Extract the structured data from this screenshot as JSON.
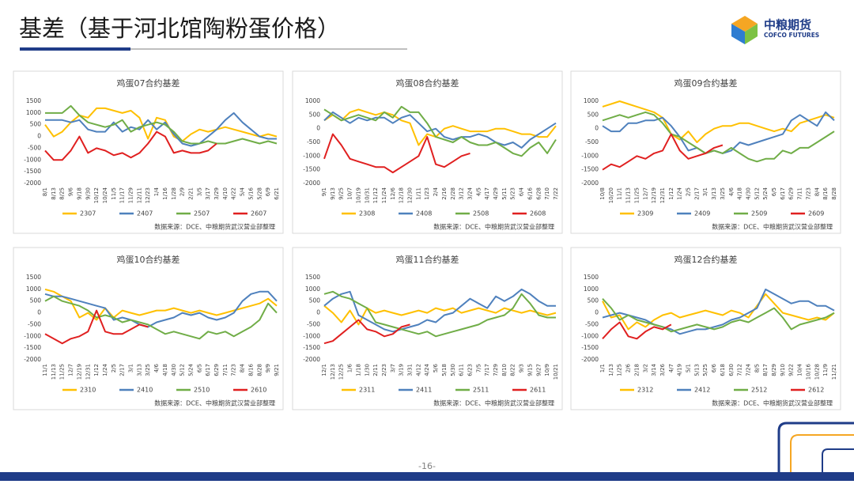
{
  "title": "基差（基于河北馆陶粉蛋价格）",
  "logo": {
    "name": "中粮期货",
    "english": "COFCO FUTURES"
  },
  "page_number": "-16-",
  "chart_data": [
    {
      "type": "line",
      "title": "鸡蛋07合约基差",
      "note": "数据来源：DCE、中粮期货武汉营业部整理",
      "legend": "bottom",
      "categories": [
        "8/1",
        "8/13",
        "8/25",
        "9/6",
        "9/18",
        "9/30",
        "10/12",
        "10/24",
        "11/5",
        "11/17",
        "11/29",
        "12/11",
        "12/23",
        "1/4",
        "1/16",
        "1/28",
        "2/9",
        "2/21",
        "3/5",
        "3/17",
        "3/29",
        "4/10",
        "4/22",
        "5/4",
        "5/16",
        "5/28",
        "6/9",
        "6/21"
      ],
      "ylim": [
        -2000,
        1500
      ],
      "yticks": [
        1500,
        1000,
        500,
        0,
        -500,
        -1000,
        -1500,
        -2000
      ],
      "series": [
        {
          "name": "2307",
          "color": "#ffc000",
          "values": [
            500,
            0,
            200,
            600,
            900,
            800,
            1200,
            1200,
            1100,
            1000,
            1100,
            800,
            -100,
            800,
            700,
            0,
            -200,
            100,
            300,
            200,
            300,
            400,
            300,
            200,
            100,
            0,
            100,
            0
          ]
        },
        {
          "name": "2407",
          "color": "#4f81bd",
          "values": [
            700,
            700,
            700,
            600,
            700,
            300,
            200,
            200,
            600,
            200,
            400,
            300,
            700,
            300,
            600,
            100,
            -300,
            -400,
            -300,
            0,
            300,
            700,
            1000,
            600,
            300,
            0,
            -100,
            -100
          ]
        },
        {
          "name": "2507",
          "color": "#70ad47",
          "values": [
            1000,
            1000,
            1000,
            1300,
            900,
            600,
            500,
            400,
            500,
            700,
            200,
            400,
            500,
            600,
            500,
            200,
            -200,
            -300,
            -300,
            -200,
            -300,
            -300,
            -200,
            -100,
            -200,
            -300,
            -200,
            -300
          ]
        },
        {
          "name": "2607",
          "color": "#e02020",
          "values": [
            -600,
            -1000,
            -1000,
            -600,
            0,
            -700,
            -500,
            -600,
            -800,
            -700,
            -900,
            -700,
            -300,
            200,
            0,
            -700,
            -600,
            -700,
            -700,
            -600,
            -300,
            null,
            null,
            null,
            null,
            null,
            null,
            null
          ]
        }
      ]
    },
    {
      "type": "line",
      "title": "鸡蛋08合约基差",
      "note": "数据来源：DCE、中粮期货武汉营业部整理",
      "legend": "bottom",
      "categories": [
        "9/1",
        "9/13",
        "9/25",
        "10/7",
        "10/19",
        "10/31",
        "11/12",
        "11/24",
        "12/6",
        "12/18",
        "12/30",
        "1/11",
        "1/23",
        "2/4",
        "2/16",
        "2/28",
        "3/12",
        "3/24",
        "4/5",
        "4/17",
        "4/29",
        "5/11",
        "5/23",
        "6/4",
        "6/16",
        "6/28",
        "7/10",
        "7/22"
      ],
      "ylim": [
        -2000,
        1000
      ],
      "yticks": [
        1000,
        500,
        0,
        -500,
        -1000,
        -1500,
        -2000
      ],
      "series": [
        {
          "name": "2308",
          "color": "#ffc000",
          "values": [
            300,
            500,
            300,
            600,
            700,
            600,
            500,
            600,
            500,
            300,
            200,
            -600,
            -200,
            -300,
            0,
            100,
            0,
            -100,
            -100,
            -100,
            0,
            0,
            -100,
            -200,
            -200,
            -300,
            -300,
            100
          ]
        },
        {
          "name": "2408",
          "color": "#4f81bd",
          "values": [
            300,
            600,
            400,
            200,
            400,
            300,
            400,
            400,
            200,
            400,
            500,
            200,
            -100,
            0,
            -300,
            -400,
            -300,
            -300,
            -200,
            -300,
            -500,
            -600,
            -500,
            -700,
            -400,
            -200,
            0,
            200
          ]
        },
        {
          "name": "2508",
          "color": "#70ad47",
          "values": [
            700,
            500,
            300,
            400,
            500,
            400,
            300,
            600,
            400,
            800,
            600,
            600,
            200,
            -300,
            -400,
            -500,
            -300,
            -500,
            -600,
            -600,
            -500,
            -700,
            -900,
            -1000,
            -700,
            -500,
            -900,
            -400
          ]
        },
        {
          "name": "2608",
          "color": "#e02020",
          "values": [
            -1100,
            -200,
            -600,
            -1100,
            -1200,
            -1300,
            -1400,
            -1400,
            -1600,
            -1400,
            -1200,
            -1000,
            -300,
            -1300,
            -1400,
            -1200,
            -1000,
            -900,
            null,
            null,
            null,
            null,
            null,
            null,
            null,
            null,
            null,
            null
          ]
        }
      ]
    },
    {
      "type": "line",
      "title": "鸡蛋09合约基差",
      "note": "数据来源：DCE、中粮期货武汉营业部整理",
      "legend": "bottom",
      "categories": [
        "10/8",
        "10/20",
        "11/1",
        "11/13",
        "11/25",
        "12/7",
        "12/19",
        "12/31",
        "1/12",
        "1/24",
        "2/5",
        "2/17",
        "3/1",
        "3/13",
        "3/25",
        "4/6",
        "4/18",
        "4/30",
        "5/12",
        "5/24",
        "6/5",
        "6/17",
        "6/29",
        "7/11",
        "7/23",
        "8/4",
        "8/16",
        "8/28"
      ],
      "ylim": [
        -2000,
        1000
      ],
      "yticks": [
        1000,
        500,
        0,
        -500,
        -1000,
        -1500,
        -2000
      ],
      "series": [
        {
          "name": "2309",
          "color": "#ffc000",
          "values": [
            800,
            900,
            1000,
            900,
            800,
            700,
            600,
            400,
            -200,
            -400,
            -100,
            -500,
            -200,
            0,
            100,
            100,
            200,
            200,
            100,
            0,
            -100,
            0,
            -100,
            200,
            300,
            400,
            500,
            400
          ]
        },
        {
          "name": "2409",
          "color": "#4f81bd",
          "values": [
            100,
            -100,
            -100,
            200,
            200,
            300,
            300,
            400,
            100,
            -300,
            -800,
            -700,
            -900,
            -800,
            -900,
            -800,
            -500,
            -600,
            -500,
            -400,
            -300,
            -200,
            300,
            500,
            300,
            100,
            600,
            300
          ]
        },
        {
          "name": "2509",
          "color": "#70ad47",
          "values": [
            300,
            400,
            500,
            400,
            500,
            600,
            500,
            200,
            -200,
            -300,
            -500,
            -700,
            -900,
            -800,
            -900,
            -700,
            -900,
            -1100,
            -1200,
            -1100,
            -1100,
            -800,
            -900,
            -700,
            -700,
            -500,
            -300,
            -100
          ]
        },
        {
          "name": "2609",
          "color": "#e02020",
          "values": [
            -1500,
            -1300,
            -1400,
            -1200,
            -1000,
            -1100,
            -900,
            -800,
            -200,
            -800,
            -1100,
            -1000,
            -900,
            -700,
            -600,
            null,
            null,
            null,
            null,
            null,
            null,
            null,
            null,
            null,
            null,
            null,
            null,
            null
          ]
        }
      ]
    },
    {
      "type": "line",
      "title": "鸡蛋10合约基差",
      "note": "数据来源：DCE、中粮期货武汉营业部整理",
      "legend": "bottom",
      "categories": [
        "11/1",
        "11/13",
        "11/25",
        "12/7",
        "12/19",
        "12/31",
        "1/12",
        "1/24",
        "2/5",
        "2/17",
        "3/1",
        "3/13",
        "3/25",
        "4/6",
        "4/18",
        "4/30",
        "5/12",
        "5/24",
        "6/5",
        "6/17",
        "6/29",
        "7/11",
        "7/23",
        "8/4",
        "8/16",
        "8/28",
        "9/9",
        "9/21"
      ],
      "ylim": [
        -2000,
        1500
      ],
      "yticks": [
        1500,
        1000,
        500,
        0,
        -500,
        -1000,
        -1500,
        -2000
      ],
      "series": [
        {
          "name": "2310",
          "color": "#ffc000",
          "values": [
            1000,
            900,
            700,
            500,
            -200,
            0,
            -300,
            200,
            -200,
            100,
            0,
            -100,
            0,
            100,
            100,
            200,
            100,
            0,
            100,
            0,
            -100,
            0,
            100,
            200,
            300,
            400,
            600,
            300
          ]
        },
        {
          "name": "2410",
          "color": "#4f81bd",
          "values": [
            800,
            700,
            700,
            600,
            500,
            400,
            300,
            200,
            -300,
            -200,
            -300,
            -500,
            -600,
            -400,
            -300,
            -200,
            0,
            -100,
            0,
            -200,
            -300,
            -200,
            0,
            500,
            800,
            900,
            900,
            500
          ]
        },
        {
          "name": "2510",
          "color": "#70ad47",
          "values": [
            500,
            700,
            500,
            400,
            300,
            100,
            -200,
            -100,
            -200,
            -400,
            -300,
            -400,
            -500,
            -700,
            -900,
            -800,
            -900,
            -1000,
            -1100,
            -800,
            -900,
            -800,
            -1000,
            -800,
            -600,
            -300,
            400,
            0
          ]
        },
        {
          "name": "2610",
          "color": "#e02020",
          "values": [
            -900,
            -1100,
            -1300,
            -1100,
            -1000,
            -800,
            100,
            -800,
            -900,
            -900,
            -700,
            -500,
            -600,
            null,
            null,
            null,
            null,
            null,
            null,
            null,
            null,
            null,
            null,
            null,
            null,
            null,
            null,
            null
          ]
        }
      ]
    },
    {
      "type": "line",
      "title": "鸡蛋11合约基差",
      "note": "数据来源：DCE、中粮期货武汉营业部整理",
      "legend": "bottom",
      "categories": [
        "12/1",
        "12/13",
        "12/25",
        "1/6",
        "1/18",
        "1/30",
        "2/11",
        "2/23",
        "3/7",
        "3/19",
        "3/31",
        "4/12",
        "4/24",
        "5/6",
        "5/18",
        "5/30",
        "6/11",
        "6/23",
        "7/5",
        "7/17",
        "7/29",
        "8/10",
        "8/22",
        "9/3",
        "9/15",
        "9/27",
        "10/9",
        "10/21"
      ],
      "ylim": [
        -2000,
        1500
      ],
      "yticks": [
        1500,
        1000,
        500,
        0,
        -500,
        -1000,
        -1500,
        -2000
      ],
      "series": [
        {
          "name": "2311",
          "color": "#ffc000",
          "values": [
            300,
            0,
            -400,
            100,
            -500,
            200,
            0,
            100,
            0,
            -100,
            0,
            100,
            0,
            200,
            100,
            200,
            0,
            100,
            200,
            100,
            0,
            200,
            100,
            0,
            100,
            0,
            -100,
            0
          ]
        },
        {
          "name": "2411",
          "color": "#4f81bd",
          "values": [
            300,
            600,
            800,
            900,
            -100,
            -300,
            -500,
            -700,
            -800,
            -700,
            -600,
            -500,
            -300,
            -400,
            -100,
            0,
            300,
            600,
            400,
            200,
            700,
            500,
            700,
            1000,
            800,
            500,
            300,
            300
          ]
        },
        {
          "name": "2511",
          "color": "#70ad47",
          "values": [
            800,
            900,
            700,
            600,
            400,
            200,
            -400,
            -500,
            -600,
            -700,
            -800,
            -900,
            -800,
            -1000,
            -900,
            -800,
            -700,
            -600,
            -500,
            -300,
            -200,
            -100,
            200,
            800,
            400,
            -100,
            -200,
            -200
          ]
        },
        {
          "name": "2611",
          "color": "#e02020",
          "values": [
            -1300,
            -1200,
            -900,
            -600,
            -300,
            -700,
            -800,
            -1000,
            -900,
            -600,
            -500,
            null,
            null,
            null,
            null,
            null,
            null,
            null,
            null,
            null,
            null,
            null,
            null,
            null,
            null,
            null,
            null,
            null
          ]
        }
      ]
    },
    {
      "type": "line",
      "title": "鸡蛋12合约基差",
      "note": "数据来源：DCE、中粮期货武汉营业部整理",
      "legend": "bottom",
      "categories": [
        "1/1",
        "1/13",
        "1/25",
        "2/6",
        "2/18",
        "3/2",
        "3/14",
        "3/26",
        "4/7",
        "4/19",
        "5/1",
        "5/13",
        "5/25",
        "6/6",
        "6/18",
        "6/30",
        "7/12",
        "7/24",
        "8/5",
        "8/17",
        "8/29",
        "9/10",
        "9/22",
        "10/4",
        "10/16",
        "10/28",
        "11/9",
        "11/21"
      ],
      "ylim": [
        -2000,
        1500
      ],
      "yticks": [
        1500,
        1000,
        500,
        0,
        -500,
        -1000,
        -1500,
        -2000
      ],
      "series": [
        {
          "name": "2312",
          "color": "#ffc000",
          "values": [
            500,
            -200,
            -100,
            -700,
            -400,
            -600,
            -300,
            -100,
            0,
            -200,
            -100,
            0,
            100,
            0,
            -100,
            100,
            0,
            -200,
            300,
            800,
            400,
            0,
            -100,
            -200,
            -300,
            -200,
            -300,
            0
          ]
        },
        {
          "name": "2412",
          "color": "#4f81bd",
          "values": [
            -200,
            -100,
            0,
            -100,
            -200,
            -300,
            -500,
            -600,
            -700,
            -900,
            -800,
            -700,
            -700,
            -600,
            -500,
            -300,
            -200,
            0,
            200,
            1000,
            800,
            600,
            400,
            500,
            500,
            300,
            300,
            100
          ]
        },
        {
          "name": "2512",
          "color": "#70ad47",
          "values": [
            600,
            200,
            -300,
            -100,
            -300,
            -400,
            -500,
            -600,
            -800,
            -700,
            -600,
            -500,
            -600,
            -700,
            -600,
            -400,
            -300,
            -400,
            -200,
            0,
            200,
            -200,
            -700,
            -500,
            -400,
            -300,
            -200,
            0
          ]
        },
        {
          "name": "2612",
          "color": "#e02020",
          "values": [
            -1100,
            -700,
            -400,
            -1000,
            -1100,
            -800,
            -600,
            -700,
            -500,
            null,
            null,
            null,
            null,
            null,
            null,
            null,
            null,
            null,
            null,
            null,
            null,
            null,
            null,
            null,
            null,
            null,
            null,
            null
          ]
        }
      ]
    }
  ]
}
